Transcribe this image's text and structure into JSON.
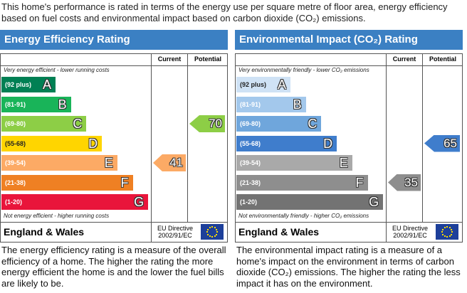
{
  "intro": "This home's performance is rated in terms of the energy use per square metre of floor area, energy efficiency based on fuel costs and environmental impact based on carbon dioxide (CO₂) emissions.",
  "panels": [
    {
      "title": "Energy Efficiency Rating",
      "col_current": "Current",
      "col_potential": "Potential",
      "top_note": "Very energy efficient - lower running costs",
      "bottom_note": "Not energy efficient - higher running costs",
      "bands": [
        {
          "range": "(92 plus)",
          "letter": "A",
          "color": "#008054"
        },
        {
          "range": "(81-91)",
          "letter": "B",
          "color": "#19b459"
        },
        {
          "range": "(69-80)",
          "letter": "C",
          "color": "#8dce46"
        },
        {
          "range": "(55-68)",
          "letter": "D",
          "color": "#ffd500"
        },
        {
          "range": "(39-54)",
          "letter": "E",
          "color": "#fcaa65"
        },
        {
          "range": "(21-38)",
          "letter": "F",
          "color": "#ef8023"
        },
        {
          "range": "(1-20)",
          "letter": "G",
          "color": "#e9153b"
        }
      ],
      "current": "41",
      "potential": "70",
      "region": "England & Wales",
      "directive": [
        "EU Directive",
        "2002/91/EC"
      ],
      "description": "The energy efficiency rating is a measure of the overall efficiency of a home. The higher the rating the more energy efficient the home is and the lower the fuel bills are likely to be."
    },
    {
      "title": "Environmental Impact (CO₂) Rating",
      "col_current": "Current",
      "col_potential": "Potential",
      "top_note": "Very environmentally friendly - lower CO₂ emissions",
      "bottom_note": "Not environmentally friendly - higher CO₂ emissions",
      "bands": [
        {
          "range": "(92 plus)",
          "letter": "A",
          "color": "#cfe2f5"
        },
        {
          "range": "(81-91)",
          "letter": "B",
          "color": "#a3c8ec"
        },
        {
          "range": "(69-80)",
          "letter": "C",
          "color": "#6fa6dc"
        },
        {
          "range": "(55-68)",
          "letter": "D",
          "color": "#3f7dcc"
        },
        {
          "range": "(39-54)",
          "letter": "E",
          "color": "#a9a9a9"
        },
        {
          "range": "(21-38)",
          "letter": "F",
          "color": "#8e8e8e"
        },
        {
          "range": "(1-20)",
          "letter": "G",
          "color": "#737373"
        }
      ],
      "current": "35",
      "potential": "65",
      "region": "England & Wales",
      "directive": [
        "EU Directive",
        "2002/91/EC"
      ],
      "description": "The environmental impact rating is a measure of a home's impact on the environment in terms of carbon dioxide (CO₂) emissions. The higher the rating the less impact it has on the environment."
    }
  ]
}
